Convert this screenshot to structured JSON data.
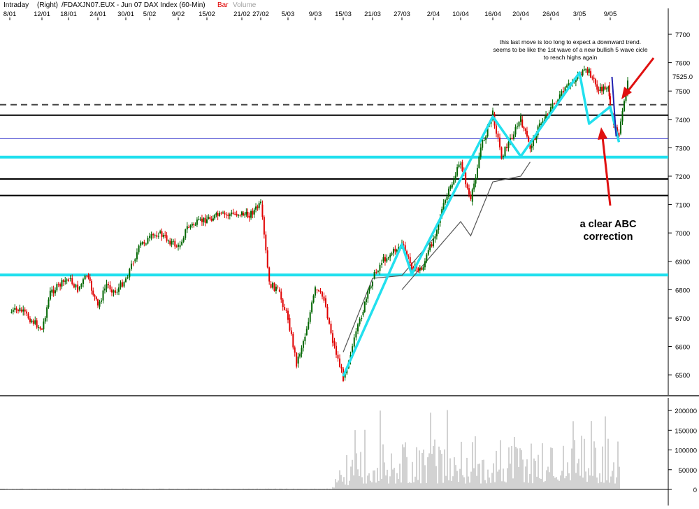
{
  "header": {
    "interval": "Intraday",
    "scale_side": "(Right)",
    "instrument": "/FDAXJN07.EUX - Jun 07  DAX Index (60-Min)",
    "series1_name": "Bar",
    "series2_name": "Volume",
    "colors": {
      "series1": "#e00000",
      "series2": "#a0a0a0"
    }
  },
  "chart_data": [
    {
      "type": "candlestick",
      "x_ticks": [
        "8/01",
        "12/01",
        "18/01",
        "24/01",
        "30/01",
        "5/02",
        "9/02",
        "15/02",
        "21/02",
        "27/02",
        "5/03",
        "9/03",
        "15/03",
        "21/03",
        "27/03",
        "2/04",
        "10/04",
        "16/04",
        "20/04",
        "26/04",
        "3/05",
        "9/05"
      ],
      "y_ticks": [
        6500,
        6600,
        6700,
        6800,
        6900,
        7000,
        7100,
        7200,
        7300,
        7400,
        7500,
        7600,
        7700
      ],
      "ylim": [
        6435,
        7790
      ],
      "last_value": 7525.0,
      "price_path": [
        [
          "8/01",
          6720
        ],
        [
          "8/01",
          6730
        ],
        [
          "12/01",
          6660
        ],
        [
          "12/01",
          6790
        ],
        [
          "18/01",
          6840
        ],
        [
          "18/01",
          6800
        ],
        [
          "18/01",
          6850
        ],
        [
          "24/01",
          6740
        ],
        [
          "24/01",
          6820
        ],
        [
          "24/01",
          6790
        ],
        [
          "30/01",
          6840
        ],
        [
          "30/01",
          6900
        ],
        [
          "30/01",
          6960
        ],
        [
          "5/02",
          6980
        ],
        [
          "5/02",
          7000
        ],
        [
          "9/02",
          6950
        ],
        [
          "9/02",
          7020
        ],
        [
          "15/02",
          7050
        ],
        [
          "15/02",
          7060
        ],
        [
          "21/02",
          7070
        ],
        [
          "21/02",
          7060
        ],
        [
          "27/02",
          7100
        ],
        [
          "27/02",
          6820
        ],
        [
          "27/02",
          6800
        ],
        [
          "5/03",
          6700
        ],
        [
          "5/03",
          6540
        ],
        [
          "5/03",
          6640
        ],
        [
          "9/03",
          6800
        ],
        [
          "9/03",
          6770
        ],
        [
          "9/03",
          6620
        ],
        [
          "15/03",
          6490
        ],
        [
          "15/03",
          6600
        ],
        [
          "15/03",
          6710
        ],
        [
          "21/03",
          6840
        ],
        [
          "21/03",
          6900
        ],
        [
          "27/03",
          6960
        ],
        [
          "27/03",
          6880
        ],
        [
          "27/03",
          6870
        ],
        [
          "2/04",
          6980
        ],
        [
          "2/04",
          7080
        ],
        [
          "2/04",
          7160
        ],
        [
          "10/04",
          7250
        ],
        [
          "10/04",
          7110
        ],
        [
          "10/04",
          7300
        ],
        [
          "16/04",
          7420
        ],
        [
          "16/04",
          7270
        ],
        [
          "20/04",
          7400
        ],
        [
          "20/04",
          7300
        ],
        [
          "20/04",
          7380
        ],
        [
          "26/04",
          7440
        ],
        [
          "26/04",
          7480
        ],
        [
          "26/04",
          7520
        ],
        [
          "3/05",
          7560
        ],
        [
          "3/05",
          7570
        ],
        [
          "3/05",
          7500
        ],
        [
          "3/05",
          7520
        ],
        [
          "9/05",
          7420
        ],
        [
          "9/05",
          7350
        ],
        [
          "9/05",
          7525
        ]
      ],
      "horizontal_levels": [
        {
          "value": 7452,
          "style": "dashed",
          "color": "#444444"
        },
        {
          "value": 7415,
          "style": "solid",
          "color": "#000000"
        },
        {
          "value": 7332,
          "style": "solid",
          "color": "#3030cc"
        },
        {
          "value": 7267,
          "style": "thick",
          "color": "#22e0ee"
        },
        {
          "value": 7190,
          "style": "solid",
          "color": "#000000"
        },
        {
          "value": 7132,
          "style": "solid",
          "color": "#000000"
        },
        {
          "value": 6852,
          "style": "thick",
          "color": "#22e0ee"
        }
      ],
      "wave_lines_cyan": [
        [
          "15/03",
          6495
        ],
        [
          "27/03",
          6960
        ],
        [
          "27/03",
          6855
        ],
        [
          "16/04",
          7410
        ],
        [
          "20/04",
          7270
        ],
        [
          "3/05",
          7565
        ],
        [
          "3/05",
          7385
        ],
        [
          "9/05",
          7445
        ],
        [
          "9/05",
          7320
        ]
      ],
      "projection_lines_gray": [
        [
          [
            "15/03",
            6580
          ],
          [
            "21/03",
            6840
          ],
          [
            "27/03",
            6850
          ],
          [
            "2/04",
            6980
          ]
        ],
        [
          [
            "27/03",
            6800
          ],
          [
            "10/04",
            7040
          ],
          [
            "10/04",
            6990
          ],
          [
            "16/04",
            7180
          ],
          [
            "20/04",
            7200
          ],
          [
            "20/04",
            7250
          ]
        ]
      ],
      "annotations": {
        "note_lines": [
          "this last move is too long to expect a downward trend.",
          "seems to be like the 1st wave of a new bullish 5 wave cicle",
          "to reach highs again"
        ],
        "correction_lines": [
          "a clear ABC",
          "correction"
        ]
      },
      "colors": {
        "up": "#006600",
        "down": "#e00000",
        "cyan": "#22e0ee",
        "arrow": "#e01010",
        "blue_wave": "#2020b0"
      }
    },
    {
      "type": "bar",
      "series": "Volume",
      "y_ticks": [
        0,
        50000,
        100000,
        150000,
        200000
      ],
      "ylim": [
        0,
        225000
      ],
      "note": "volume is near zero before 15/03 and then fluctuates between about 20000 and 200000"
    }
  ]
}
